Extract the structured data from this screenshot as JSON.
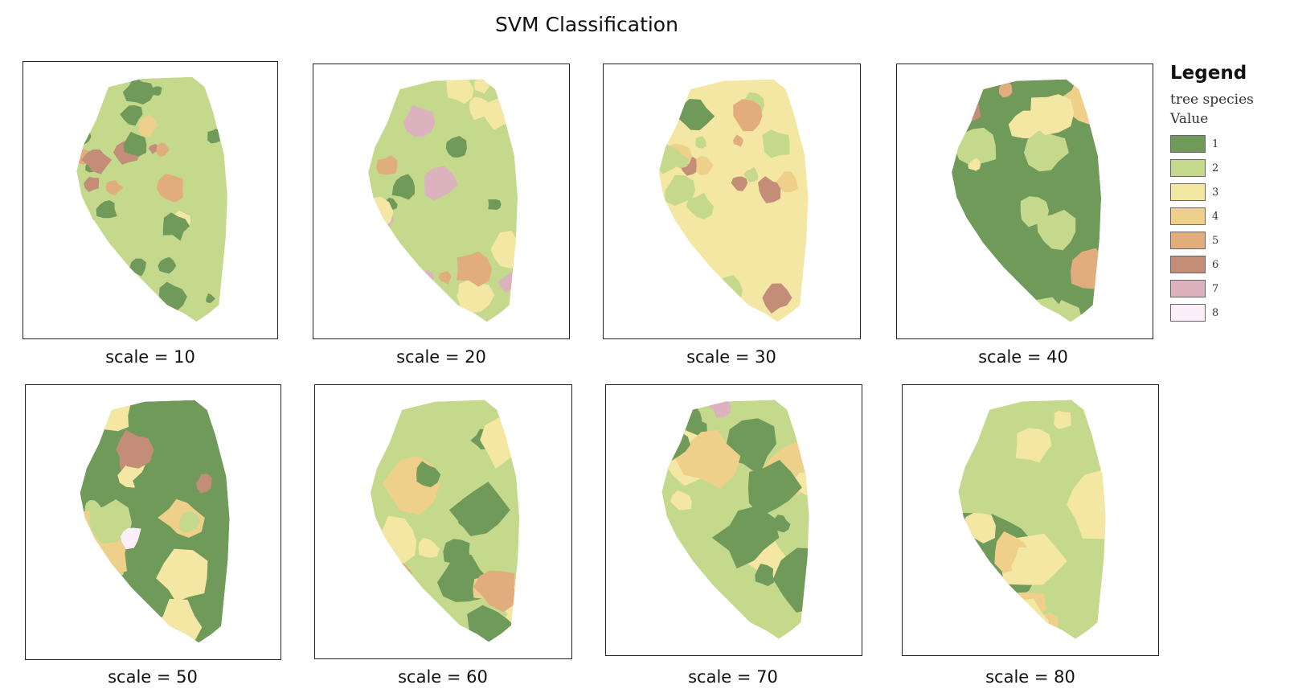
{
  "title": "SVM Classification",
  "legend": {
    "title": "Legend",
    "subtitle": "tree species",
    "value_label": "Value",
    "items": [
      {
        "label": "1",
        "color": "#6f9a5a"
      },
      {
        "label": "2",
        "color": "#c5d98d"
      },
      {
        "label": "3",
        "color": "#f3e7a3"
      },
      {
        "label": "4",
        "color": "#eed08a"
      },
      {
        "label": "5",
        "color": "#e2ad7c"
      },
      {
        "label": "6",
        "color": "#c48d78"
      },
      {
        "label": "7",
        "color": "#ddb2bf"
      },
      {
        "label": "8",
        "color": "#fbeffa"
      }
    ]
  },
  "panels": [
    {
      "caption": "scale = 10"
    },
    {
      "caption": "scale = 20"
    },
    {
      "caption": "scale = 30"
    },
    {
      "caption": "scale = 40"
    },
    {
      "caption": "scale = 50"
    },
    {
      "caption": "scale = 60"
    },
    {
      "caption": "scale = 70"
    },
    {
      "caption": "scale = 80"
    }
  ]
}
